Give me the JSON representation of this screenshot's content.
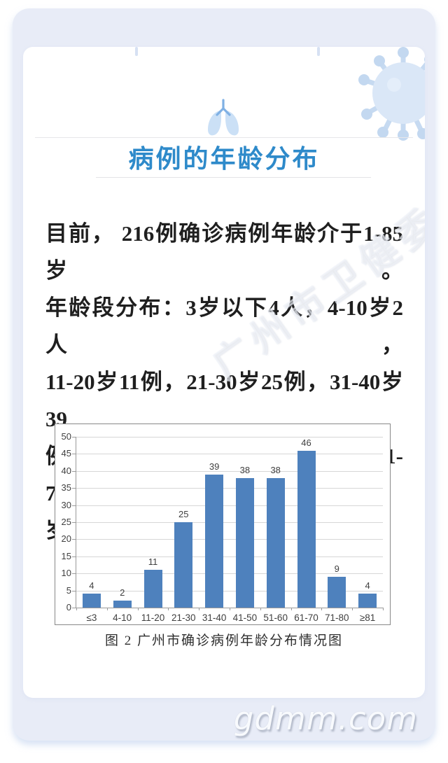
{
  "page": {
    "site_watermark": "gdmm.com",
    "agency_watermark": "广州市卫健委"
  },
  "header": {
    "title": "病例的年龄分布"
  },
  "icons": {
    "header_icon": "lung-icon",
    "corner_decoration": "coronavirus-icon"
  },
  "body": {
    "lines": [
      "目前， 216例确诊病例年龄介于1-85岁。",
      "年龄段分布：3岁以下4人，4-10岁2人，",
      "11-20岁11例，21-30岁25例，31-40岁39",
      "例，41-50岁38例，51-60岁38例，61-70",
      "岁46例，71-80岁9例，81岁以上4例。"
    ],
    "full_text": "目前，216例确诊病例年龄介于1-85岁。年龄段分布：3岁以下4人，4-10岁2人，11-20岁11例，21-30岁25例，31-40岁39例，41-50岁38例，51-60岁38例，61-70岁46例，71-80岁9例，81岁以上4例。"
  },
  "chart_data": {
    "type": "bar",
    "title": "",
    "caption": "图 2 广州市确诊病例年龄分布情况图",
    "categories": [
      "≤3",
      "4-10",
      "11-20",
      "21-30",
      "31-40",
      "41-50",
      "51-60",
      "61-70",
      "71-80",
      "≥81"
    ],
    "values": [
      4,
      2,
      11,
      25,
      39,
      38,
      38,
      46,
      9,
      4
    ],
    "xlabel": "",
    "ylabel": "",
    "ylim": [
      0,
      50
    ],
    "ytick_step": 5,
    "grid": true,
    "legend_position": "none",
    "bar_color": "#4E81BD"
  },
  "colors": {
    "accent_blue": "#2E8ACA",
    "card_background": "#E8ECF7",
    "panel_background": "#FFFFFF",
    "bar": "#4E81BD",
    "body_text": "#1F1F1F",
    "gridline": "#D6D6D6",
    "axis": "#9A9A9A"
  }
}
